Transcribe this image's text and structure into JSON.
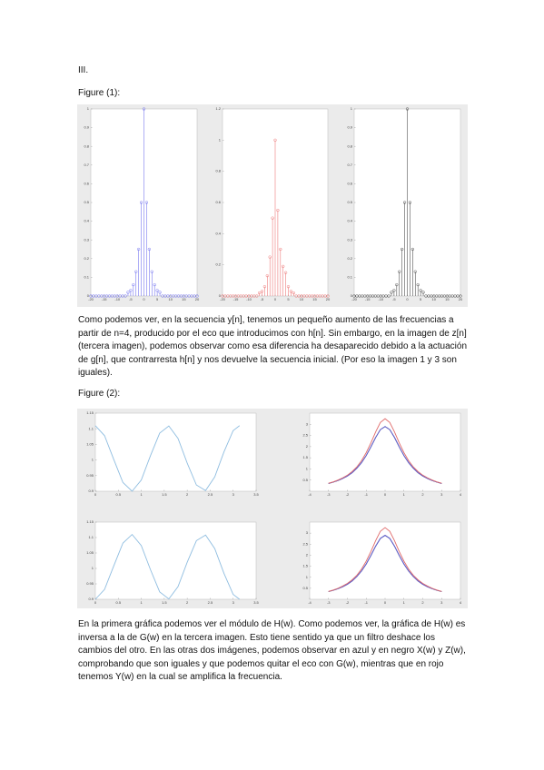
{
  "document": {
    "section": "III.",
    "figure1_label": "Figure (1):",
    "paragraph1": "Como podemos ver, en la secuencia y[n], tenemos un pequeño aumento de las frecuencias a partir de n=4, producido por el eco que introducimos con h[n]. Sin embargo, en la imagen de z[n] (tercera imagen), podemos observar como esa diferencia ha desaparecido debido a la actuación de g[n], que contrarresta h[n] y nos devuelve la secuencia inicial. (Por eso la imagen 1 y 3 son iguales).",
    "figure2_label": "Figure (2):",
    "paragraph2": "En la primera gráfica podemos ver el módulo de H(w). Como podemos ver, la gráfica de H(w) es inversa a la de G(w) en la tercera imagen. Esto tiene sentido ya que un filtro deshace los cambios del otro. En las otras dos imágenes, podemos observar en azul y en negro X(w) y Z(w), comprobando que son iguales y que podemos quitar el eco con G(w), mientras que en rojo tenemos Y(w) en la cual se amplifica la frecuencia."
  },
  "chart_data": [
    {
      "type": "stem",
      "color": "#7a7af0",
      "x": [
        -20,
        -19,
        -18,
        -17,
        -16,
        -15,
        -14,
        -13,
        -12,
        -11,
        -10,
        -9,
        -8,
        -7,
        -6,
        -5,
        -4,
        -3,
        -2,
        -1,
        0,
        1,
        2,
        3,
        4,
        5,
        6,
        7,
        8,
        9,
        10,
        11,
        12,
        13,
        14,
        15,
        16,
        17,
        18,
        19,
        20
      ],
      "values": [
        0,
        0,
        0,
        0,
        0,
        0,
        0,
        0,
        0,
        0,
        0,
        0,
        0,
        0,
        0.02,
        0.03,
        0.06,
        0.13,
        0.25,
        0.5,
        1,
        0.5,
        0.25,
        0.13,
        0.06,
        0.03,
        0.02,
        0,
        0,
        0,
        0,
        0,
        0,
        0,
        0,
        0,
        0,
        0,
        0,
        0,
        0
      ],
      "xlim": [
        -20,
        20
      ],
      "ylim": [
        0,
        1
      ],
      "xticks": [
        -20,
        -15,
        -10,
        -5,
        0,
        5,
        10,
        15,
        20
      ],
      "yticks": [
        0,
        0.1,
        0.2,
        0.3,
        0.4,
        0.5,
        0.6,
        0.7,
        0.8,
        0.9,
        1
      ]
    },
    {
      "type": "stem",
      "color": "#ee7b7b",
      "x": [
        -20,
        -19,
        -18,
        -17,
        -16,
        -15,
        -14,
        -13,
        -12,
        -11,
        -10,
        -9,
        -8,
        -7,
        -6,
        -5,
        -4,
        -3,
        -2,
        -1,
        0,
        1,
        2,
        3,
        4,
        5,
        6,
        7,
        8,
        9,
        10,
        11,
        12,
        13,
        14,
        15,
        16,
        17,
        18,
        19,
        20
      ],
      "values": [
        0,
        0,
        0,
        0,
        0,
        0,
        0,
        0,
        0,
        0,
        0,
        0,
        0,
        0,
        0.02,
        0.03,
        0.06,
        0.13,
        0.25,
        0.5,
        1,
        0.55,
        0.3,
        0.19,
        0.15,
        0.06,
        0.03,
        0.02,
        0,
        0,
        0,
        0,
        0,
        0,
        0,
        0,
        0,
        0,
        0,
        0,
        0
      ],
      "xlim": [
        -20,
        20
      ],
      "ylim": [
        0,
        1.2
      ],
      "xticks": [
        -20,
        -15,
        -10,
        -5,
        0,
        5,
        10,
        15,
        20
      ],
      "yticks": [
        0,
        0.2,
        0.4,
        0.6,
        0.8,
        1,
        1.2
      ]
    },
    {
      "type": "stem",
      "color": "#555555",
      "x": [
        -20,
        -19,
        -18,
        -17,
        -16,
        -15,
        -14,
        -13,
        -12,
        -11,
        -10,
        -9,
        -8,
        -7,
        -6,
        -5,
        -4,
        -3,
        -2,
        -1,
        0,
        1,
        2,
        3,
        4,
        5,
        6,
        7,
        8,
        9,
        10,
        11,
        12,
        13,
        14,
        15,
        16,
        17,
        18,
        19,
        20
      ],
      "values": [
        0,
        0,
        0,
        0,
        0,
        0,
        0,
        0,
        0,
        0,
        0,
        0,
        0,
        0,
        0.02,
        0.03,
        0.06,
        0.13,
        0.25,
        0.5,
        1,
        0.5,
        0.25,
        0.13,
        0.06,
        0.03,
        0.02,
        0,
        0,
        0,
        0,
        0,
        0,
        0,
        0,
        0,
        0,
        0,
        0,
        0,
        0
      ],
      "xlim": [
        -20,
        20
      ],
      "ylim": [
        0,
        1
      ],
      "xticks": [
        -20,
        -15,
        -10,
        -5,
        0,
        5,
        10,
        15,
        20
      ],
      "yticks": [
        0,
        0.1,
        0.2,
        0.3,
        0.4,
        0.5,
        0.6,
        0.7,
        0.8,
        0.9,
        1
      ]
    },
    {
      "type": "line",
      "x": [
        0,
        0.2,
        0.4,
        0.6,
        0.8,
        1,
        1.2,
        1.4,
        1.6,
        1.8,
        2,
        2.2,
        2.4,
        2.6,
        2.8,
        3,
        3.14
      ],
      "series": [
        {
          "color": "#8fbde0",
          "values": [
            1.11,
            1.078,
            1.002,
            0.928,
            0.9,
            0.936,
            1.014,
            1.086,
            1.109,
            1.069,
            0.99,
            0.92,
            0.902,
            0.946,
            1.026,
            1.094,
            1.11
          ]
        }
      ],
      "xlim": [
        0,
        3.5
      ],
      "ylim": [
        0.9,
        1.15
      ],
      "xticks": [
        0,
        0.5,
        1,
        1.5,
        2,
        2.5,
        3,
        3.5
      ],
      "yticks": [
        0.9,
        0.95,
        1,
        1.05,
        1.1,
        1.15
      ]
    },
    {
      "type": "line",
      "x": [
        -3,
        -2.75,
        -2.5,
        -2.25,
        -2,
        -1.75,
        -1.5,
        -1.25,
        -1,
        -0.75,
        -0.5,
        -0.25,
        0,
        0.25,
        0.5,
        0.75,
        1,
        1.25,
        1.5,
        1.75,
        2,
        2.25,
        2.5,
        2.75,
        3
      ],
      "series": [
        {
          "color": "#222222",
          "values": [
            0.35,
            0.41,
            0.48,
            0.57,
            0.68,
            0.83,
            1.03,
            1.28,
            1.6,
            1.99,
            2.41,
            2.76,
            2.9,
            2.76,
            2.41,
            1.99,
            1.6,
            1.28,
            1.03,
            0.83,
            0.68,
            0.57,
            0.48,
            0.41,
            0.35
          ]
        },
        {
          "color": "#6060dd",
          "values": [
            0.35,
            0.41,
            0.48,
            0.57,
            0.68,
            0.83,
            1.03,
            1.28,
            1.6,
            1.99,
            2.41,
            2.76,
            2.9,
            2.76,
            2.41,
            1.99,
            1.6,
            1.28,
            1.03,
            0.83,
            0.68,
            0.57,
            0.48,
            0.41,
            0.35
          ]
        },
        {
          "color": "#e06a6a",
          "values": [
            0.36,
            0.42,
            0.5,
            0.6,
            0.72,
            0.88,
            1.09,
            1.37,
            1.73,
            2.17,
            2.66,
            3.08,
            3.25,
            3.08,
            2.66,
            2.17,
            1.73,
            1.37,
            1.09,
            0.88,
            0.72,
            0.6,
            0.5,
            0.42,
            0.36
          ]
        }
      ],
      "xlim": [
        -4,
        4
      ],
      "ylim": [
        0,
        3.5
      ],
      "xticks": [
        -4,
        -3,
        -2,
        -1,
        0,
        1,
        2,
        3,
        4
      ],
      "yticks": [
        0.5,
        1,
        1.5,
        2,
        2.5,
        3
      ]
    },
    {
      "type": "line",
      "x": [
        0,
        0.2,
        0.4,
        0.6,
        0.8,
        1,
        1.2,
        1.4,
        1.6,
        1.8,
        2,
        2.2,
        2.4,
        2.6,
        2.8,
        3,
        3.14
      ],
      "series": [
        {
          "color": "#8fbde0",
          "values": [
            0.9,
            0.932,
            1.008,
            1.082,
            1.11,
            1.074,
            0.996,
            0.924,
            0.901,
            0.941,
            1.02,
            1.09,
            1.108,
            1.064,
            0.984,
            0.916,
            0.9
          ]
        }
      ],
      "xlim": [
        0,
        3.5
      ],
      "ylim": [
        0.9,
        1.15
      ],
      "xticks": [
        0,
        0.5,
        1,
        1.5,
        2,
        2.5,
        3,
        3.5
      ],
      "yticks": [
        0.9,
        0.95,
        1,
        1.05,
        1.1,
        1.15
      ]
    },
    {
      "type": "line",
      "x": [
        -3,
        -2.75,
        -2.5,
        -2.25,
        -2,
        -1.75,
        -1.5,
        -1.25,
        -1,
        -0.75,
        -0.5,
        -0.25,
        0,
        0.25,
        0.5,
        0.75,
        1,
        1.25,
        1.5,
        1.75,
        2,
        2.25,
        2.5,
        2.75,
        3
      ],
      "series": [
        {
          "color": "#222222",
          "values": [
            0.35,
            0.41,
            0.48,
            0.57,
            0.68,
            0.83,
            1.03,
            1.28,
            1.6,
            1.99,
            2.41,
            2.76,
            2.9,
            2.76,
            2.41,
            1.99,
            1.6,
            1.28,
            1.03,
            0.83,
            0.68,
            0.57,
            0.48,
            0.41,
            0.35
          ]
        },
        {
          "color": "#6060dd",
          "values": [
            0.35,
            0.41,
            0.48,
            0.57,
            0.68,
            0.83,
            1.03,
            1.28,
            1.6,
            1.99,
            2.41,
            2.76,
            2.9,
            2.76,
            2.41,
            1.99,
            1.6,
            1.28,
            1.03,
            0.83,
            0.68,
            0.57,
            0.48,
            0.41,
            0.35
          ]
        },
        {
          "color": "#e06a6a",
          "values": [
            0.36,
            0.42,
            0.5,
            0.6,
            0.72,
            0.88,
            1.09,
            1.37,
            1.73,
            2.17,
            2.66,
            3.08,
            3.25,
            3.08,
            2.66,
            2.17,
            1.73,
            1.37,
            1.09,
            0.88,
            0.72,
            0.6,
            0.5,
            0.42,
            0.36
          ]
        }
      ],
      "xlim": [
        -4,
        4
      ],
      "ylim": [
        0,
        3.5
      ],
      "xticks": [
        -4,
        -3,
        -2,
        -1,
        0,
        1,
        2,
        3,
        4
      ],
      "yticks": [
        0.5,
        1,
        1.5,
        2,
        2.5,
        3
      ]
    }
  ]
}
